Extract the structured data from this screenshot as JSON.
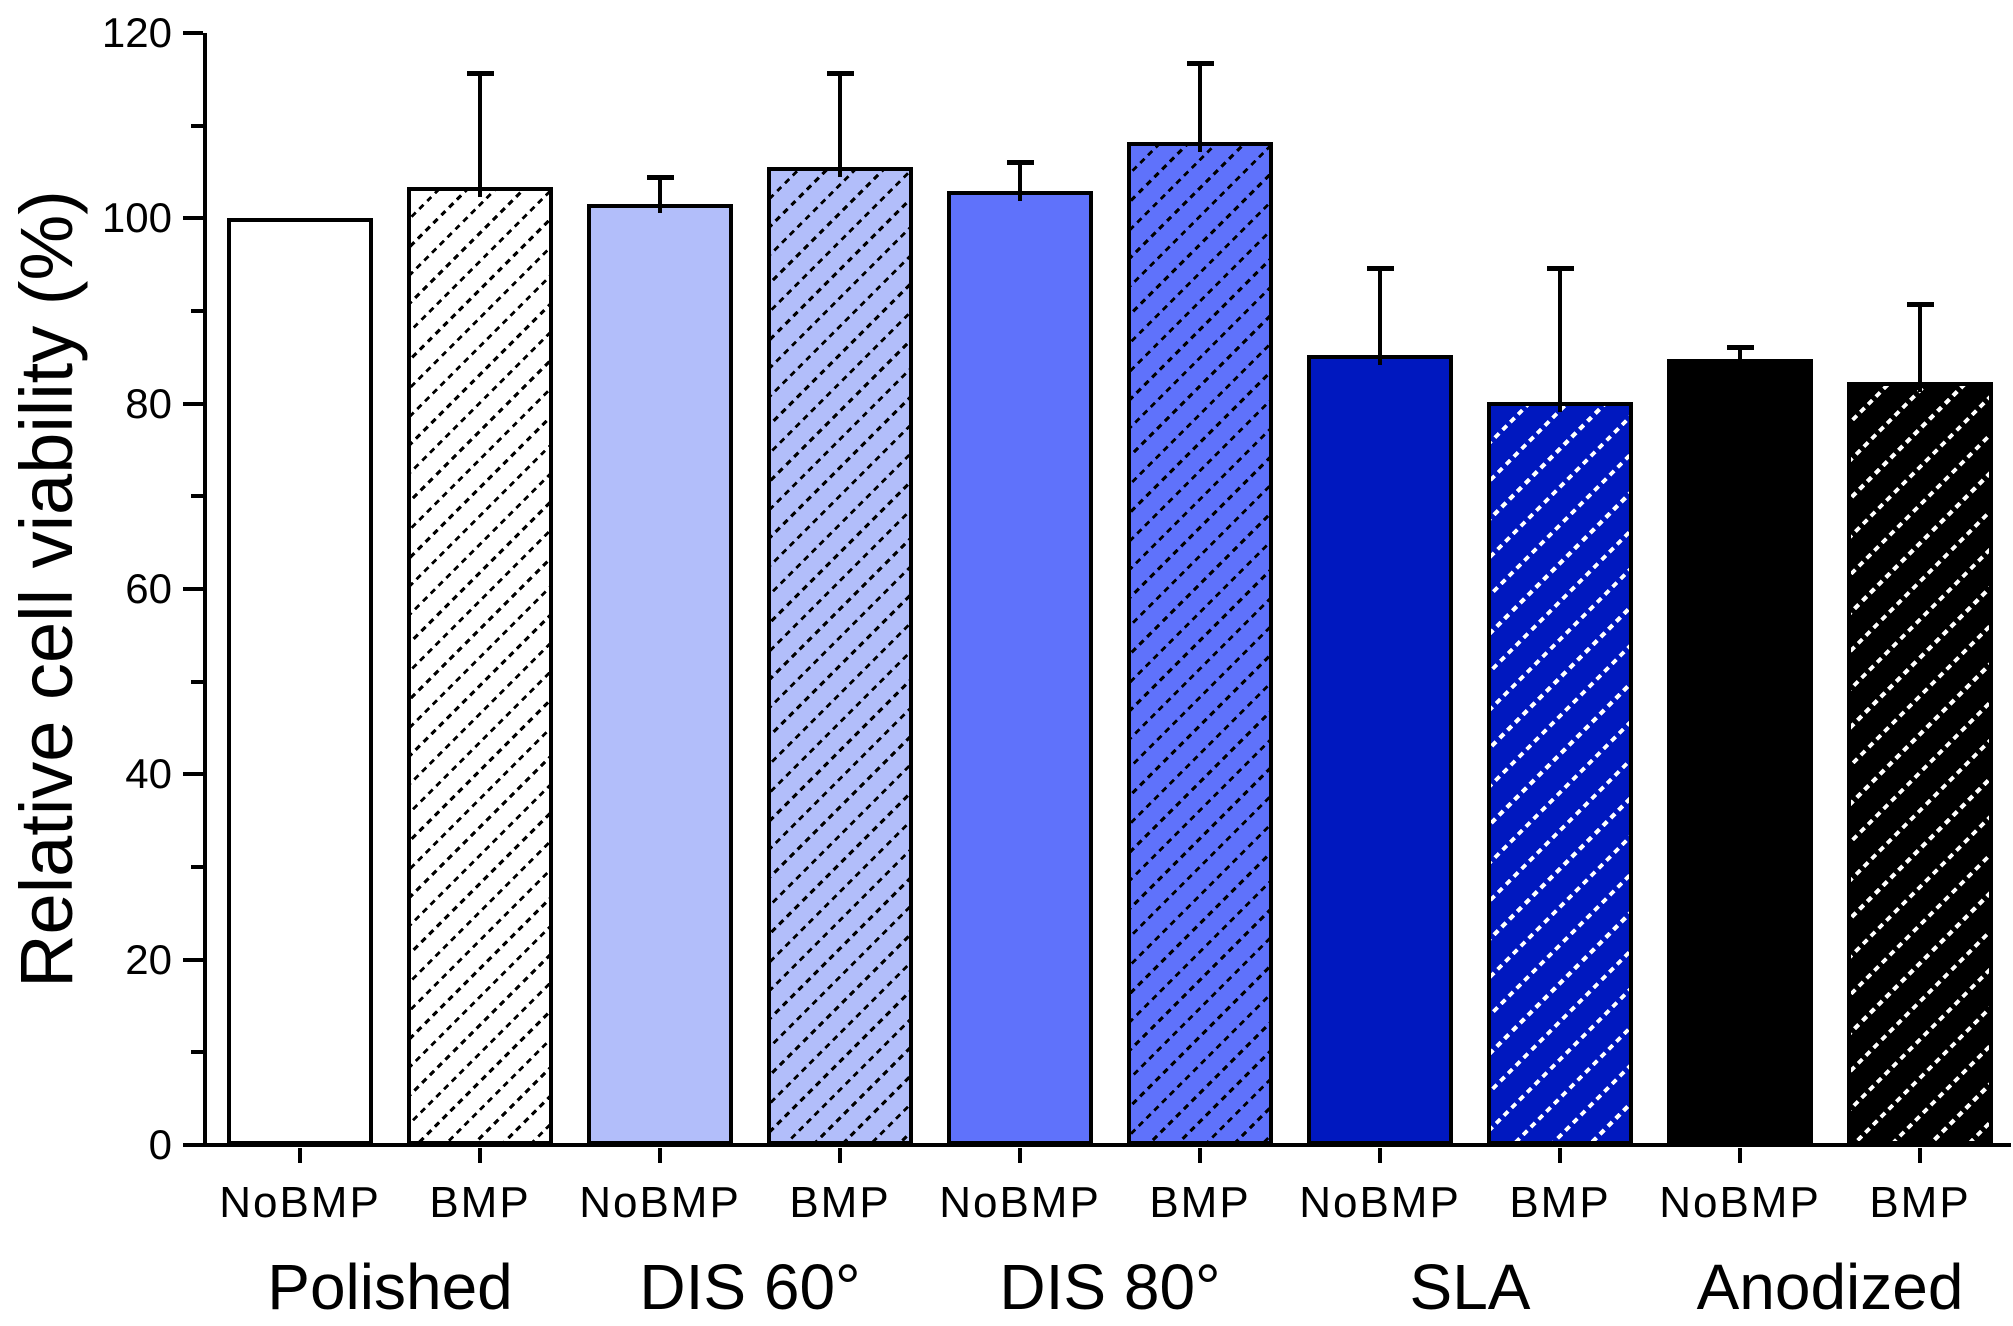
{
  "chart_data": {
    "type": "bar",
    "title": "",
    "ylabel": "Relative cell viability (%)",
    "xlabel": "",
    "ylim": [
      0,
      120
    ],
    "y_major_tick_step": 20,
    "y_minor_tick_step": 10,
    "y_tick_labels": [
      "0",
      "20",
      "40",
      "60",
      "80",
      "100",
      "120"
    ],
    "grid": false,
    "legend_position": "none",
    "axis_color": "#000000",
    "bar_outline_color": "#000000",
    "group_labels": [
      "Polished",
      "DIS 60°",
      "DIS 80°",
      "SLA",
      "Anodized"
    ],
    "condition_labels": [
      "NoBMP",
      "BMP"
    ],
    "bars": [
      {
        "group": "Polished",
        "condition": "NoBMP",
        "value": 100.0,
        "error": 0,
        "fill": "#ffffff",
        "hatched": false,
        "hatch_color": null
      },
      {
        "group": "Polished",
        "condition": "BMP",
        "value": 103.4,
        "error": 12.3,
        "fill": "#ffffff",
        "hatched": true,
        "hatch_color": "#000000"
      },
      {
        "group": "DIS 60°",
        "condition": "NoBMP",
        "value": 101.6,
        "error": 2.9,
        "fill": "#b2befa",
        "hatched": false,
        "hatch_color": null
      },
      {
        "group": "DIS 60°",
        "condition": "BMP",
        "value": 105.5,
        "error": 10.2,
        "fill": "#b2befa",
        "hatched": true,
        "hatch_color": "#000000"
      },
      {
        "group": "DIS 80°",
        "condition": "NoBMP",
        "value": 102.9,
        "error": 3.2,
        "fill": "#5f72fb",
        "hatched": false,
        "hatch_color": null
      },
      {
        "group": "DIS 80°",
        "condition": "BMP",
        "value": 108.2,
        "error": 8.6,
        "fill": "#5f72fb",
        "hatched": true,
        "hatch_color": "#000000"
      },
      {
        "group": "SLA",
        "condition": "NoBMP",
        "value": 85.2,
        "error": 9.4,
        "fill": "#0018bf",
        "hatched": false,
        "hatch_color": null
      },
      {
        "group": "SLA",
        "condition": "BMP",
        "value": 80.2,
        "error": 14.4,
        "fill": "#0018bf",
        "hatched": true,
        "hatch_color": "#ffffff"
      },
      {
        "group": "Anodized",
        "condition": "NoBMP",
        "value": 84.8,
        "error": 1.3,
        "fill": "#000000",
        "hatched": false,
        "hatch_color": null
      },
      {
        "group": "Anodized",
        "condition": "BMP",
        "value": 82.3,
        "error": 8.5,
        "fill": "#000000",
        "hatched": true,
        "hatch_color": "#ffffff"
      }
    ]
  }
}
